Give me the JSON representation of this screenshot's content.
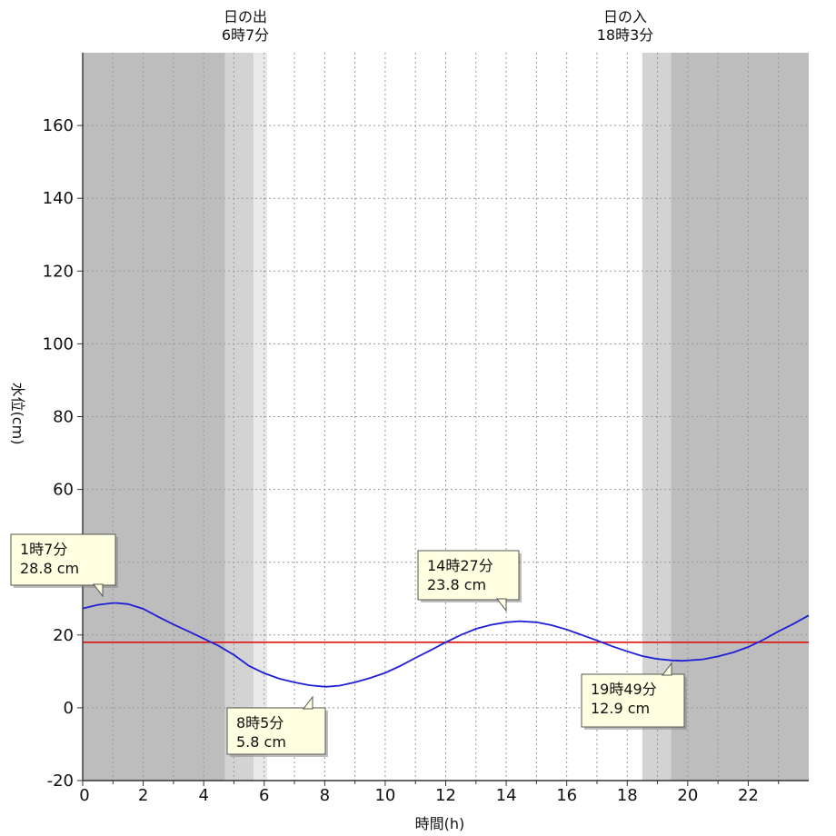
{
  "sunrise": {
    "label": "日の出",
    "time": "6時7分"
  },
  "sunset": {
    "label": "日の入",
    "time": "18時3分"
  },
  "colors": {
    "night": "#bdbdbd",
    "twilight": "#d3d3d3",
    "dawn_edge": "#e9e9e9",
    "day": "#ffffff",
    "grid": "#9a9a9a",
    "tide_line": "#1f1fd6",
    "reference_line": "#e01010",
    "callout_bg": "#ffffe1"
  },
  "chart_data": {
    "type": "line",
    "xlabel": "時間(h)",
    "ylabel": "水位(cm)",
    "xlim": [
      0,
      24
    ],
    "ylim": [
      -20,
      180
    ],
    "x_ticks": [
      0,
      2,
      4,
      6,
      8,
      10,
      12,
      14,
      16,
      18,
      20,
      22
    ],
    "y_ticks": [
      -20,
      0,
      20,
      40,
      60,
      80,
      100,
      120,
      140,
      160
    ],
    "grid": true,
    "reference_level": 18,
    "shading": {
      "night": [
        [
          0,
          4.7
        ],
        [
          19.45,
          24
        ]
      ],
      "twilight": [
        [
          4.7,
          5.65
        ],
        [
          18.5,
          19.45
        ]
      ],
      "dawn_edge": [
        [
          5.65,
          6.1
        ]
      ]
    },
    "series": [
      {
        "x": [
          0,
          0.5,
          1,
          1.12,
          1.5,
          2,
          2.5,
          3,
          3.5,
          4,
          4.5,
          5,
          5.5,
          6,
          6.5,
          7,
          7.5,
          8,
          8.08,
          8.5,
          9,
          9.5,
          10,
          10.5,
          11,
          11.5,
          12,
          12.5,
          13,
          13.5,
          14,
          14.45,
          15,
          15.5,
          16,
          16.5,
          17,
          17.5,
          18,
          18.5,
          19,
          19.5,
          19.82,
          20.5,
          21,
          21.5,
          22,
          22.5,
          23,
          23.5,
          24
        ],
        "y": [
          27.3,
          28.3,
          28.8,
          28.8,
          28.5,
          27.2,
          25.0,
          22.9,
          21.0,
          19.0,
          17.0,
          14.5,
          11.5,
          9.5,
          8.0,
          7.0,
          6.2,
          5.8,
          5.8,
          6.1,
          7.0,
          8.2,
          9.6,
          11.5,
          13.7,
          15.8,
          18.0,
          20.0,
          21.7,
          22.8,
          23.5,
          23.8,
          23.5,
          22.7,
          21.5,
          20.0,
          18.5,
          16.9,
          15.5,
          14.2,
          13.4,
          13.0,
          12.9,
          13.3,
          14.1,
          15.2,
          16.7,
          18.7,
          21.0,
          23.1,
          25.4
        ]
      }
    ],
    "annotations": [
      {
        "time": "1時7分",
        "value": "28.8 cm",
        "x": 1.12,
        "y": 28.8
      },
      {
        "time": "8時5分",
        "value": "5.8 cm",
        "x": 8.08,
        "y": 5.8
      },
      {
        "time": "14時27分",
        "value": "23.8 cm",
        "x": 14.45,
        "y": 23.8
      },
      {
        "time": "19時49分",
        "value": "12.9 cm",
        "x": 19.82,
        "y": 12.9
      }
    ]
  }
}
